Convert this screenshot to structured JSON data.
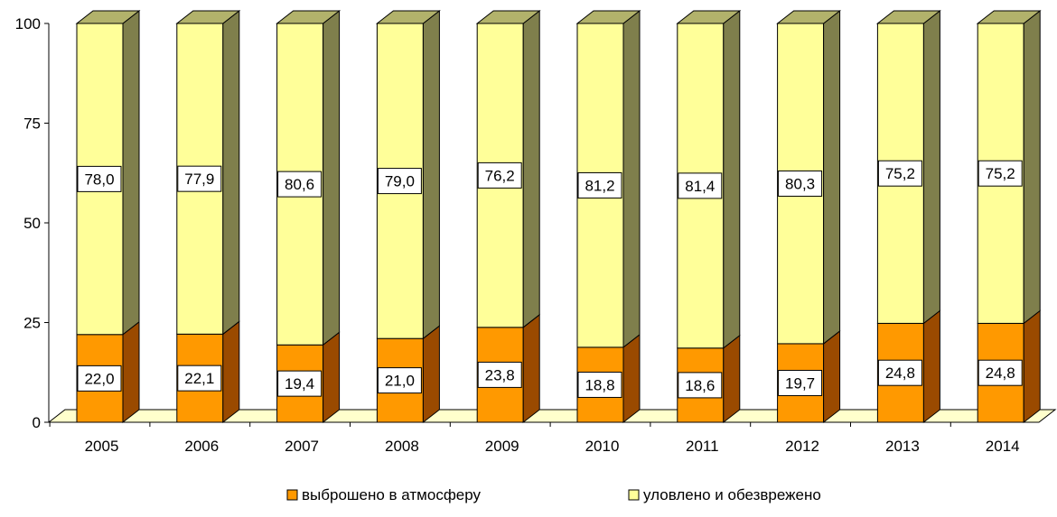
{
  "chart_data": {
    "type": "bar",
    "stacked": true,
    "three_d": true,
    "categories": [
      "2005",
      "2006",
      "2007",
      "2008",
      "2009",
      "2010",
      "2011",
      "2012",
      "2013",
      "2014"
    ],
    "series": [
      {
        "name": "выброшено в атмосферу",
        "values": [
          22.0,
          22.1,
          19.4,
          21.0,
          23.8,
          18.8,
          18.6,
          19.7,
          24.8,
          24.8
        ],
        "labels": [
          "22,0",
          "22,1",
          "19,4",
          "21,0",
          "23,8",
          "18,8",
          "18,6",
          "19,7",
          "24,8",
          "24,8"
        ],
        "color": "#FF9900"
      },
      {
        "name": "уловлено и обезврежено",
        "values": [
          78.0,
          77.9,
          80.6,
          79.0,
          76.2,
          81.2,
          81.4,
          80.3,
          75.2,
          75.2
        ],
        "labels": [
          "78,0",
          "77,9",
          "80,6",
          "79,0",
          "76,2",
          "81,2",
          "81,4",
          "80,3",
          "75,2",
          "75,2"
        ],
        "color": "#FFFF99"
      }
    ],
    "y_ticks": [
      "0",
      "25",
      "50",
      "75",
      "100"
    ],
    "ylim": [
      0,
      100
    ],
    "legend_position": "bottom",
    "grid": false,
    "colors": {
      "orange_side": "#9A4A00",
      "orange_top": "#CC7A00",
      "yellow_side": "#7F7F4C",
      "yellow_top": "#B2B26B",
      "floor": "#FFFFCC"
    }
  }
}
